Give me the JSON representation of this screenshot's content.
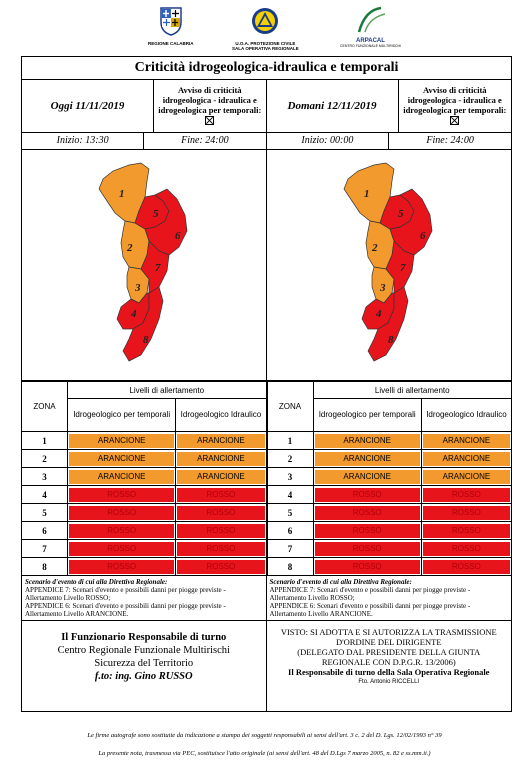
{
  "logos": {
    "left_caption": "REGIONE CALABRIA",
    "center_caption_1": "U.O.A. PROTEZIONE CIVILE",
    "center_caption_2": "SALA OPERATIVA REGIONALE",
    "right_caption_1": "ARPACAL",
    "right_caption_2": "CENTRO FUNZIONALE MULTIRISCHI"
  },
  "title": "Criticità idrogeologica-idraulica e temporali",
  "today": {
    "label": "Oggi 11/11/2019",
    "avviso": "Avviso di criticità idrogeologica - idraulica e idrogeologica per temporali:",
    "inizio": "Inizio: 13:30",
    "fine": "Fine: 24:00"
  },
  "tomorrow": {
    "label": "Domani 12/11/2019",
    "avviso": "Avviso di criticità idrogeologica - idraulica e idrogeologica per temporali:",
    "inizio": "Inizio: 00:00",
    "fine": "Fine: 24:00"
  },
  "map_zone_labels": [
    "1",
    "2",
    "3",
    "4",
    "5",
    "6",
    "7",
    "8"
  ],
  "table": {
    "zona_header": "ZONA",
    "levels_header": "Livelli di allertamento",
    "col1_header": "Idrogeologico per temporali",
    "col2_header": "Idrogeologico Idraulico",
    "rows": [
      {
        "zone": "1",
        "c1": "ARANCIONE",
        "c2": "ARANCIONE",
        "color": "#f29a2e"
      },
      {
        "zone": "2",
        "c1": "ARANCIONE",
        "c2": "ARANCIONE",
        "color": "#f29a2e"
      },
      {
        "zone": "3",
        "c1": "ARANCIONE",
        "c2": "ARANCIONE",
        "color": "#f29a2e"
      },
      {
        "zone": "4",
        "c1": "ROSSO",
        "c2": "ROSSO",
        "color": "#e8141c"
      },
      {
        "zone": "5",
        "c1": "ROSSO",
        "c2": "ROSSO",
        "color": "#e8141c"
      },
      {
        "zone": "6",
        "c1": "ROSSO",
        "c2": "ROSSO",
        "color": "#e8141c"
      },
      {
        "zone": "7",
        "c1": "ROSSO",
        "c2": "ROSSO",
        "color": "#e8141c"
      },
      {
        "zone": "8",
        "c1": "ROSSO",
        "c2": "ROSSO",
        "color": "#e8141c"
      }
    ]
  },
  "scenario": {
    "heading": "Scenario d'evento di cui alla Direttiva Regionale:",
    "line1": "APPENDICE 7: Scenari d'evento e possibili danni per piogge previste - Allertamento Livello ROSSO;",
    "line2": "APPENDICE 6: Scenari d'evento e possibili danni per piogge previste - Allertamento Livello ARANCIONE."
  },
  "footer_left": {
    "l1": "Il Funzionario Responsabile di turno",
    "l2": "Centro Regionale Funzionale Multirischi",
    "l3": "Sicurezza del Territorio",
    "l4": "f.to: ing. Gino RUSSO"
  },
  "footer_right": {
    "l1": "VISTO: SI ADOTTA E SI AUTORIZZA LA TRASMISSIONE",
    "l2": "D'ORDINE DEL DIRIGENTE",
    "l3": "(DELEGATO DAL PRESIDENTE DELLA GIUNTA",
    "l4": "REGIONALE CON D.P.G.R. 13/2006)",
    "l5": "Il Responsabile di turno della Sala Operativa Regionale",
    "l6": "Fto. Antonio RICCELLI"
  },
  "notes": {
    "n1": "Le firme autografe sono sostituite da indicazione a stampa dei soggetti responsabili ai sensi dell'art. 3 c. 2 del D. Lgs. 12/02/1993 n° 39",
    "n2": "La presente nota, trasmessa via PEC, sostituisce l'atto originale (ai sensi dell'art. 48 del D.Lgs 7 marzo 2005, n. 82 e ss.mm.ii.)"
  },
  "colors": {
    "arancione": "#f29a2e",
    "rosso": "#e8141c"
  }
}
